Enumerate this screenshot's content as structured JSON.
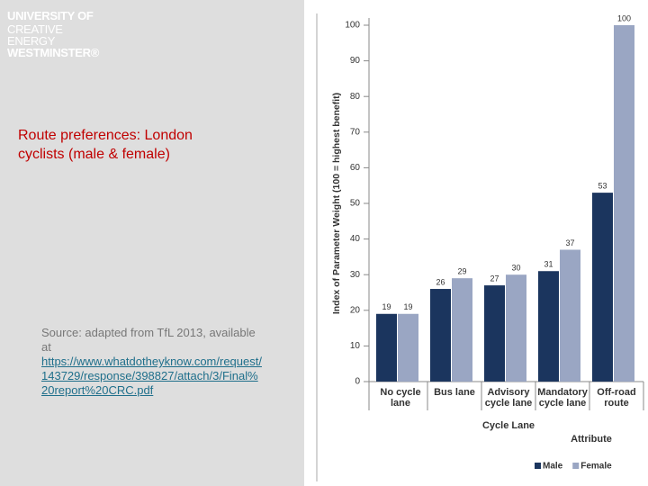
{
  "slide": {
    "logo": [
      "UNIVERSITY OF",
      "CREATIVE",
      "ENERGY",
      "WESTMINSTER®"
    ],
    "title": "Route preferences: London cyclists (male & female)",
    "source": "Source: adapted from TfL 2013, available at",
    "link": "https://www.whatdotheyknow.com/request/143729/response/398827/attach/3/Final%20report%20CRC.pdf"
  },
  "chart_data": {
    "type": "bar",
    "categories": [
      "No cycle lane",
      "Bus lane",
      "Advisory cycle lane",
      "Mandatory cycle lane",
      "Off-road route"
    ],
    "series": [
      {
        "name": "Male",
        "color": "#1b355e",
        "values": [
          19,
          26,
          27,
          31,
          53
        ]
      },
      {
        "name": "Female",
        "color": "#9aa6c3",
        "values": [
          19,
          29,
          30,
          37,
          100
        ]
      }
    ],
    "ylabel": "Index of Parameter Weight (100 = highest benefit)",
    "xlabel": "Attribute",
    "annotation": "Cycle Lane",
    "ylim": [
      0,
      100
    ],
    "yticks": [
      0,
      10,
      20,
      30,
      40,
      50,
      60,
      70,
      80,
      90,
      100
    ],
    "legend": "bottom-right"
  }
}
